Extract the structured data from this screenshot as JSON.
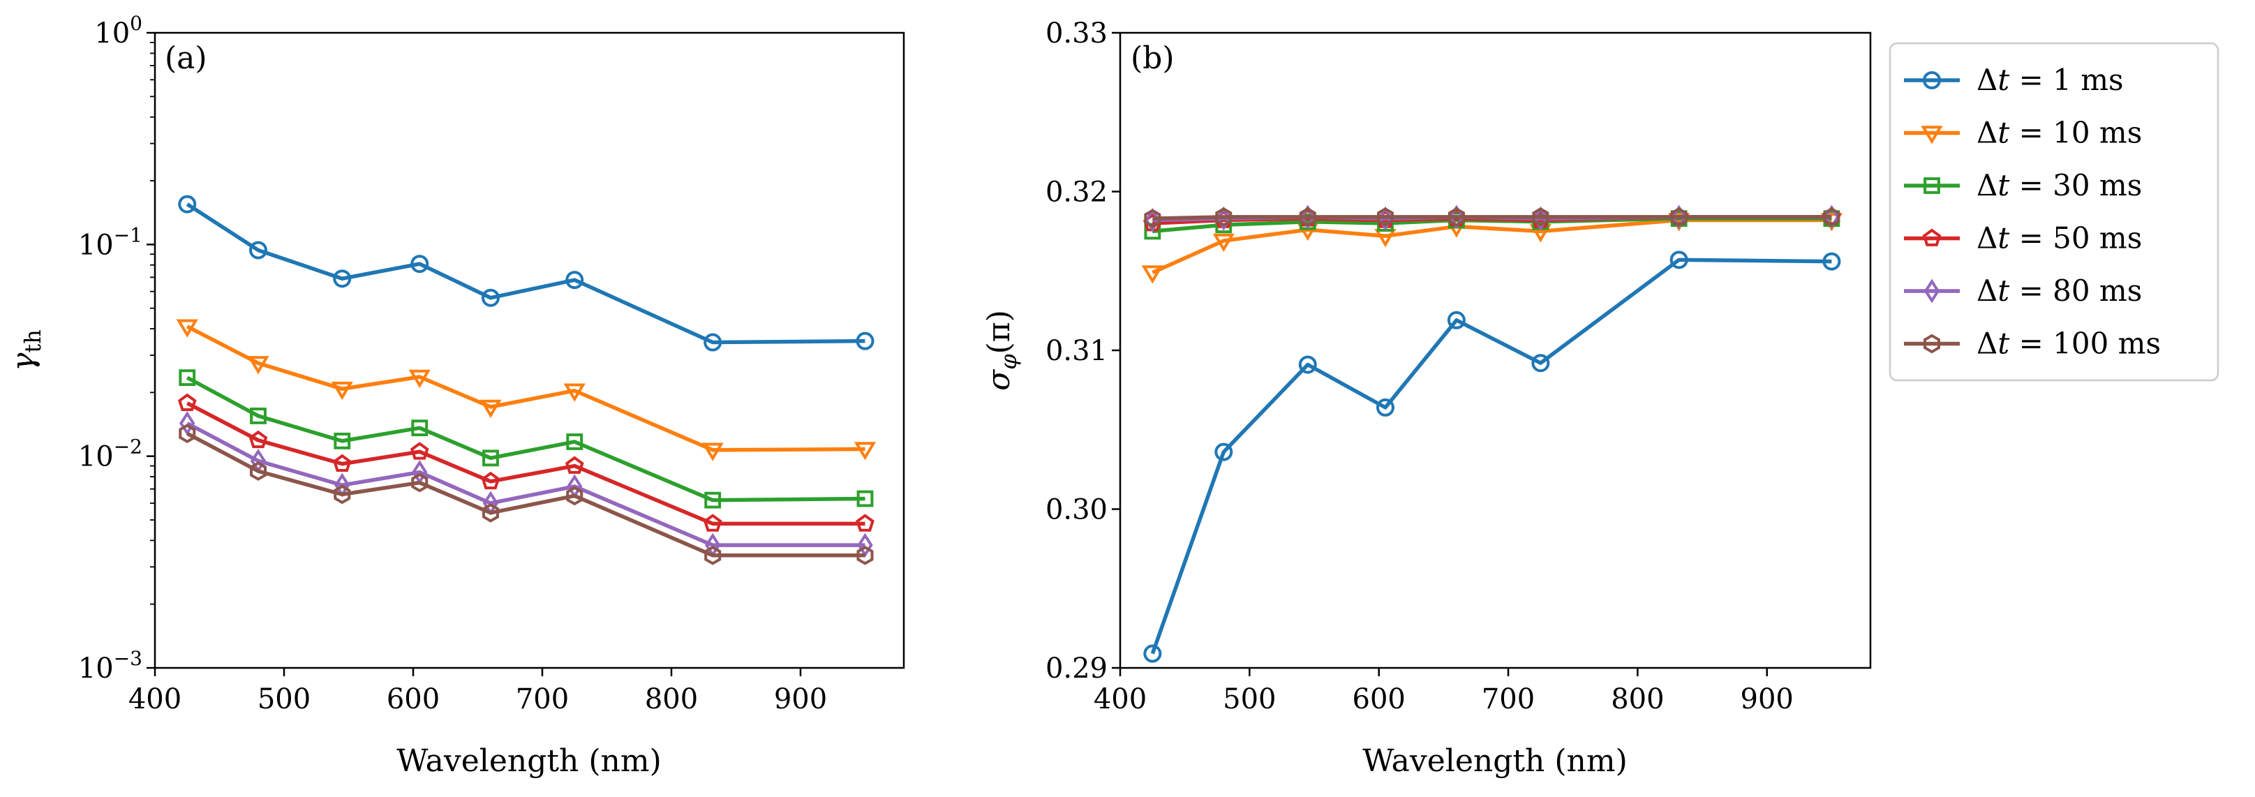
{
  "chart_data": [
    {
      "type": "line",
      "panel_label": "(a)",
      "xlabel": "Wavelength (nm)",
      "ylabel_main": "γ",
      "ylabel_sub": "th",
      "yscale": "log",
      "xlim": [
        400,
        980
      ],
      "ylim": [
        0.001,
        1
      ],
      "xticks": [
        400,
        500,
        600,
        700,
        800,
        900
      ],
      "xtick_labels": [
        "400",
        "500",
        "600",
        "700",
        "800",
        "900"
      ],
      "yticks": [
        {
          "value": 1,
          "base": "10",
          "exp": "0"
        },
        {
          "value": 0.1,
          "base": "10",
          "exp": "−1"
        },
        {
          "value": 0.01,
          "base": "10",
          "exp": "−2"
        },
        {
          "value": 0.001,
          "base": "10",
          "exp": "−3"
        }
      ],
      "x": [
        425,
        480,
        545,
        605,
        660,
        725,
        832,
        950
      ],
      "series": [
        {
          "name": "Δt = 1 ms",
          "color": "#1f77b4",
          "marker": "circle",
          "values": [
            0.155,
            0.094,
            0.069,
            0.081,
            0.056,
            0.068,
            0.0345,
            0.035
          ]
        },
        {
          "name": "Δt = 10 ms",
          "color": "#ff7f0e",
          "marker": "triangle-down",
          "values": [
            0.041,
            0.0275,
            0.0208,
            0.0237,
            0.0171,
            0.0204,
            0.0107,
            0.0108
          ]
        },
        {
          "name": "Δt = 30 ms",
          "color": "#2ca02c",
          "marker": "square",
          "values": [
            0.0235,
            0.0155,
            0.0118,
            0.0136,
            0.0098,
            0.0117,
            0.0062,
            0.0063
          ]
        },
        {
          "name": "Δt = 50 ms",
          "color": "#d62728",
          "marker": "pentagon",
          "values": [
            0.0178,
            0.0119,
            0.0092,
            0.0105,
            0.0076,
            0.009,
            0.0048,
            0.0048
          ]
        },
        {
          "name": "Δt = 80 ms",
          "color": "#9467bd",
          "marker": "diamond",
          "values": [
            0.0143,
            0.0095,
            0.0073,
            0.0084,
            0.006,
            0.0072,
            0.0038,
            0.0038
          ]
        },
        {
          "name": "Δt = 100 ms",
          "color": "#8c564b",
          "marker": "hexagon",
          "values": [
            0.0128,
            0.0085,
            0.0066,
            0.0075,
            0.0054,
            0.0065,
            0.0034,
            0.0034
          ]
        }
      ]
    },
    {
      "type": "line",
      "panel_label": "(b)",
      "xlabel": "Wavelength (nm)",
      "ylabel_main": "σ",
      "ylabel_sub": "φ",
      "ylabel_tail": "(π)",
      "yscale": "linear",
      "xlim": [
        400,
        980
      ],
      "ylim": [
        0.29,
        0.33
      ],
      "xticks": [
        400,
        500,
        600,
        700,
        800,
        900
      ],
      "xtick_labels": [
        "400",
        "500",
        "600",
        "700",
        "800",
        "900"
      ],
      "yticks": [
        0.29,
        0.3,
        0.31,
        0.32,
        0.33
      ],
      "ytick_labels": [
        "0.29",
        "0.30",
        "0.31",
        "0.32",
        "0.33"
      ],
      "x": [
        425,
        480,
        545,
        605,
        660,
        725,
        832,
        950
      ],
      "series": [
        {
          "name": "Δt = 1 ms",
          "color": "#1f77b4",
          "marker": "circle",
          "values": [
            0.2909,
            0.3036,
            0.3091,
            0.3064,
            0.3119,
            0.3092,
            0.3157,
            0.3156
          ]
        },
        {
          "name": "Δt = 10 ms",
          "color": "#ff7f0e",
          "marker": "triangle-down",
          "values": [
            0.3149,
            0.3169,
            0.3176,
            0.3172,
            0.3178,
            0.3175,
            0.3182,
            0.3182
          ]
        },
        {
          "name": "Δt = 30 ms",
          "color": "#2ca02c",
          "marker": "square",
          "values": [
            0.3175,
            0.3179,
            0.3181,
            0.318,
            0.3182,
            0.3181,
            0.3183,
            0.3183
          ]
        },
        {
          "name": "Δt = 50 ms",
          "color": "#d62728",
          "marker": "pentagon",
          "values": [
            0.318,
            0.3182,
            0.3183,
            0.3182,
            0.3183,
            0.3182,
            0.3184,
            0.3184
          ]
        },
        {
          "name": "Δt = 80 ms",
          "color": "#9467bd",
          "marker": "diamond",
          "values": [
            0.3182,
            0.3183,
            0.3184,
            0.3183,
            0.3184,
            0.3183,
            0.3184,
            0.3184
          ]
        },
        {
          "name": "Δt = 100 ms",
          "color": "#8c564b",
          "marker": "hexagon",
          "values": [
            0.3183,
            0.3184,
            0.3184,
            0.3184,
            0.3184,
            0.3184,
            0.3184,
            0.3184
          ]
        }
      ]
    }
  ],
  "legend": {
    "placement": "outside-right",
    "items": [
      {
        "prefix": "Δ",
        "var": "t",
        "rest": " = 1 ms",
        "color": "#1f77b4",
        "marker": "circle"
      },
      {
        "prefix": "Δ",
        "var": "t",
        "rest": " = 10 ms",
        "color": "#ff7f0e",
        "marker": "triangle-down"
      },
      {
        "prefix": "Δ",
        "var": "t",
        "rest": " = 30 ms",
        "color": "#2ca02c",
        "marker": "square"
      },
      {
        "prefix": "Δ",
        "var": "t",
        "rest": " = 50 ms",
        "color": "#d62728",
        "marker": "pentagon"
      },
      {
        "prefix": "Δ",
        "var": "t",
        "rest": " = 80 ms",
        "color": "#9467bd",
        "marker": "diamond"
      },
      {
        "prefix": "Δ",
        "var": "t",
        "rest": " = 100 ms",
        "color": "#8c564b",
        "marker": "hexagon"
      }
    ]
  }
}
